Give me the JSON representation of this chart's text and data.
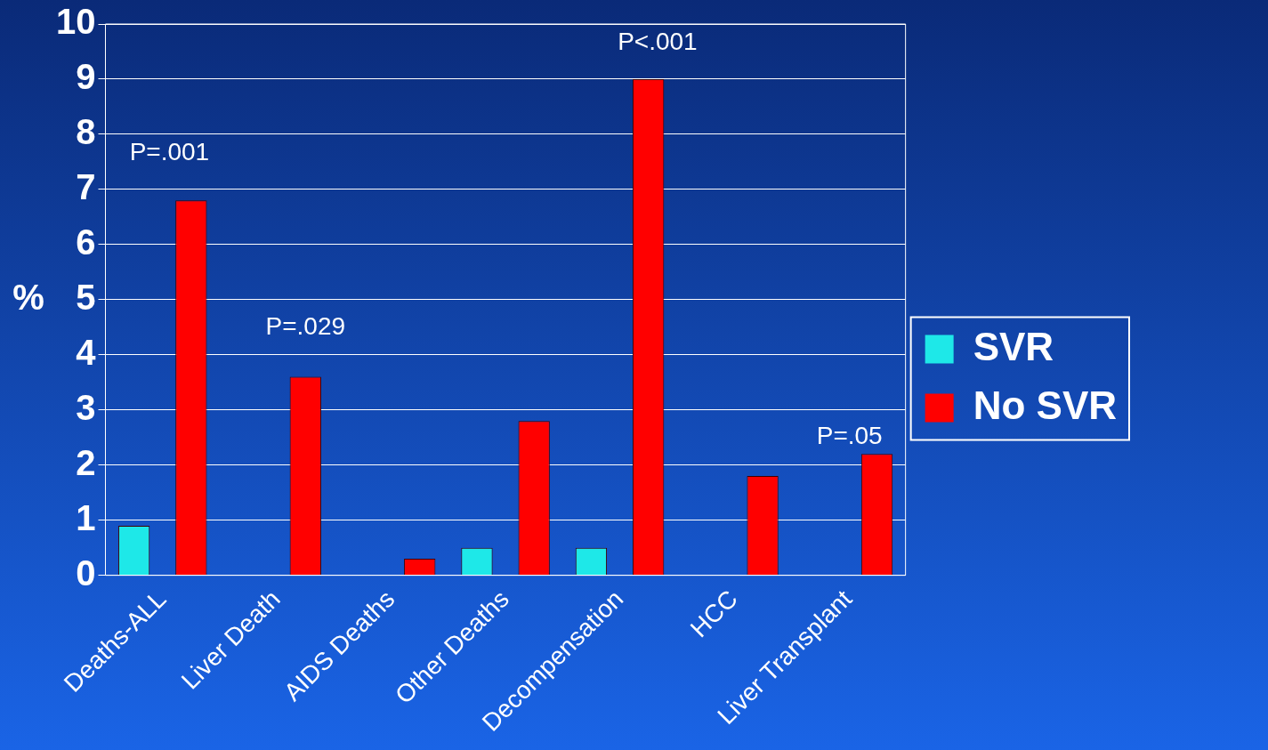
{
  "chart_data": {
    "type": "bar",
    "ylabel": "%",
    "categories": [
      "Deaths-ALL",
      "Liver Death",
      "AIDS Deaths",
      "Other Deaths",
      "Decompensation",
      "HCC",
      "Liver Transplant"
    ],
    "series": [
      {
        "name": "SVR",
        "color": "#1ee8e8",
        "values": [
          0.9,
          0,
          0,
          0.5,
          0.5,
          0,
          0
        ]
      },
      {
        "name": "No SVR",
        "color": "#ff0000",
        "values": [
          6.8,
          3.6,
          0.3,
          2.8,
          9.0,
          1.8,
          2.2
        ]
      }
    ],
    "ylim": [
      0,
      10
    ],
    "yticks": [
      0,
      1,
      2,
      3,
      4,
      5,
      6,
      7,
      8,
      9,
      10
    ],
    "grid": "y",
    "legend": "right",
    "annotations": [
      "P=.001",
      "P=.029",
      "P<.001",
      "P=.05"
    ]
  }
}
